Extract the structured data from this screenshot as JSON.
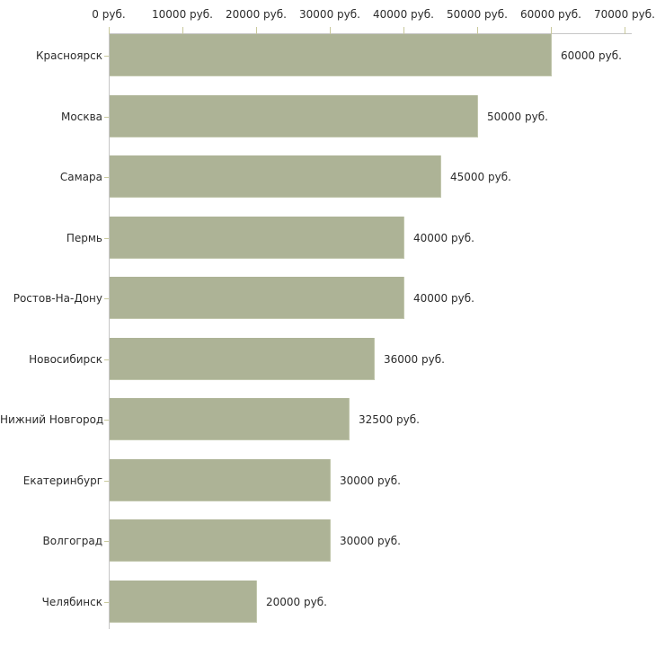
{
  "chart_data": {
    "type": "bar",
    "orientation": "horizontal",
    "title": "",
    "xlabel": "",
    "ylabel": "",
    "xlim": [
      0,
      70000
    ],
    "x_tick_step": 10000,
    "x_tick_labels": [
      "0 руб.",
      "10000 руб.",
      "20000 руб.",
      "30000 руб.",
      "40000 руб.",
      "50000 руб.",
      "60000 руб.",
      "70000 руб."
    ],
    "categories": [
      "Красноярск",
      "Москва",
      "Самара",
      "Пермь",
      "Ростов-На-Дону",
      "Новосибирск",
      "Нижний Новгород",
      "Екатеринбург",
      "Волгоград",
      "Челябинск"
    ],
    "values": [
      60000,
      50000,
      45000,
      40000,
      40000,
      36000,
      32500,
      30000,
      30000,
      20000
    ],
    "value_labels": [
      "60000 руб.",
      "50000 руб.",
      "45000 руб.",
      "40000 руб.",
      "40000 руб.",
      "36000 руб.",
      "32500 руб.",
      "30000 руб.",
      "30000 руб.",
      "20000 руб."
    ],
    "grid": false,
    "legend": false,
    "colors": {
      "bar": "#adb396",
      "axis_line": "#c6c6c6",
      "tick": "#c9c99c",
      "text": "#2b2b2b",
      "background": "#ffffff"
    }
  }
}
